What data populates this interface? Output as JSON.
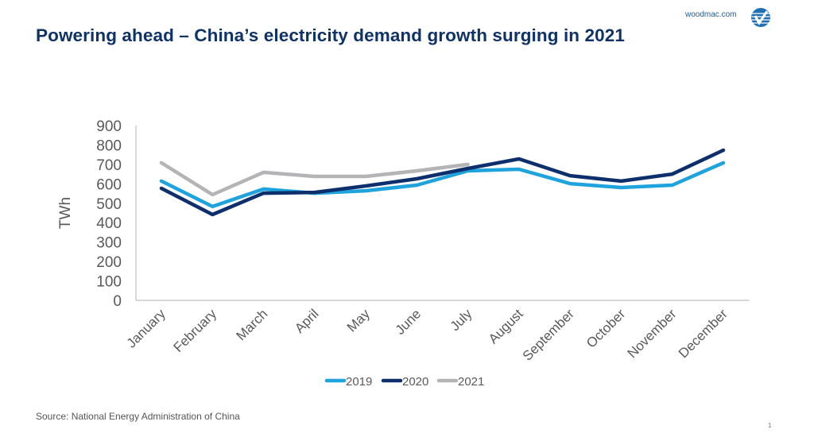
{
  "header": {
    "brand_url": "woodmac.com",
    "logo_icon": "woodmac-logo-icon",
    "title": "Powering ahead – China’s electricity demand growth surging in 2021"
  },
  "footer": {
    "source": "Source: National  Energy Administration of China",
    "page_number": "1"
  },
  "chart_data": {
    "type": "line",
    "title": "Powering ahead – China’s electricity demand growth surging in 2021",
    "xlabel": "",
    "ylabel": "TWh",
    "ylim": [
      0,
      900
    ],
    "yticks": [
      0,
      100,
      200,
      300,
      400,
      500,
      600,
      700,
      800,
      900
    ],
    "ytick_labels": [
      "0",
      "100",
      "200",
      "300",
      "400",
      "500",
      "600",
      "700",
      "800",
      "900"
    ],
    "grid": false,
    "legend_position": "bottom",
    "categories": [
      "January",
      "February",
      "March",
      "April",
      "May",
      "June",
      "July",
      "August",
      "September",
      "October",
      "November",
      "December"
    ],
    "series": [
      {
        "name": "2019",
        "color": "#1fa3dc",
        "values": [
          614,
          483,
          573,
          552,
          564,
          593,
          667,
          675,
          601,
          581,
          593,
          708
        ]
      },
      {
        "name": "2020",
        "color": "#0d2f6b",
        "values": [
          577,
          442,
          552,
          556,
          589,
          626,
          679,
          728,
          642,
          614,
          650,
          773
        ]
      },
      {
        "name": "2021",
        "color": "#b4b4b6",
        "values": [
          708,
          544,
          659,
          638,
          638,
          667,
          700
        ]
      }
    ]
  }
}
